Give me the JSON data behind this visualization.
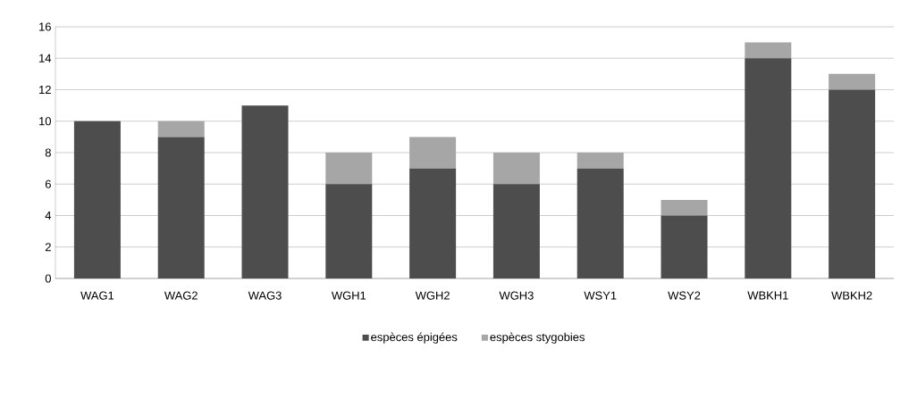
{
  "chart_data": {
    "type": "bar",
    "stacked": true,
    "categories": [
      "WAG1",
      "WAG2",
      "WAG3",
      "WGH1",
      "WGH2",
      "WGH3",
      "WSY1",
      "WSY2",
      "WBKH1",
      "WBKH2"
    ],
    "series": [
      {
        "name": "espèces épigées",
        "color": "#4d4d4d",
        "values": [
          10,
          9,
          11,
          6,
          7,
          6,
          7,
          4,
          14,
          12
        ]
      },
      {
        "name": "espèces stygobies",
        "color": "#a6a6a6",
        "values": [
          0,
          1,
          0,
          2,
          2,
          2,
          1,
          1,
          1,
          1
        ]
      }
    ],
    "ylim": [
      0,
      16
    ],
    "yticks": [
      0,
      2,
      4,
      6,
      8,
      10,
      12,
      14,
      16
    ],
    "grid": "y",
    "legend": "bottom"
  }
}
